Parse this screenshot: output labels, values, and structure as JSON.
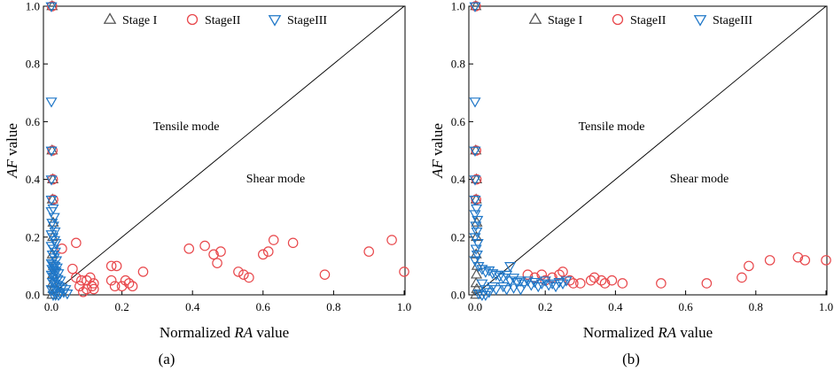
{
  "chart_data": [
    {
      "type": "scatter",
      "panel_label": "(a)",
      "title": "",
      "xlabel_pre": "Normalized ",
      "xlabel_italic": "RA",
      "xlabel_post": " value",
      "ylabel_italic": "AF",
      "ylabel_post": " value",
      "xlim": [
        0,
        1
      ],
      "ylim": [
        0,
        1
      ],
      "xticks": [
        "0.0",
        "0.2",
        "0.4",
        "0.6",
        "0.8",
        "1.0"
      ],
      "yticks": [
        "0.0",
        "0.2",
        "0.4",
        "0.6",
        "0.8",
        "1.0"
      ],
      "regions": {
        "upper": "Tensile mode",
        "lower": "Shear mode"
      },
      "reference_line": [
        [
          0,
          0
        ],
        [
          1,
          1
        ]
      ],
      "legend": [
        "Stage I",
        "StageII",
        "StageIII"
      ],
      "series": [
        {
          "name": "Stage I",
          "marker": "triangle-up",
          "color": "#555555",
          "points": [
            [
              0.002,
              1.0
            ],
            [
              0.002,
              0.5
            ],
            [
              0.004,
              0.4
            ],
            [
              0.003,
              0.33
            ],
            [
              0.005,
              0.25
            ],
            [
              0.004,
              0.2
            ],
            [
              0.003,
              0.14
            ],
            [
              0.006,
              0.1
            ],
            [
              0.004,
              0.07
            ],
            [
              0.003,
              0.04
            ],
            [
              0.005,
              0.02
            ],
            [
              0.002,
              0.0
            ]
          ]
        },
        {
          "name": "StageII",
          "marker": "circle",
          "color": "#e8474b",
          "points": [
            [
              0.002,
              1.0
            ],
            [
              0.003,
              0.5
            ],
            [
              0.004,
              0.4
            ],
            [
              0.005,
              0.33
            ],
            [
              0.03,
              0.16
            ],
            [
              0.06,
              0.09
            ],
            [
              0.07,
              0.18
            ],
            [
              0.07,
              0.06
            ],
            [
              0.08,
              0.03
            ],
            [
              0.085,
              0.05
            ],
            [
              0.09,
              0.01
            ],
            [
              0.1,
              0.02
            ],
            [
              0.1,
              0.05
            ],
            [
              0.11,
              0.06
            ],
            [
              0.115,
              0.03
            ],
            [
              0.12,
              0.04
            ],
            [
              0.12,
              0.02
            ],
            [
              0.17,
              0.1
            ],
            [
              0.17,
              0.05
            ],
            [
              0.18,
              0.03
            ],
            [
              0.185,
              0.1
            ],
            [
              0.2,
              0.03
            ],
            [
              0.21,
              0.05
            ],
            [
              0.22,
              0.04
            ],
            [
              0.23,
              0.03
            ],
            [
              0.26,
              0.08
            ],
            [
              0.39,
              0.16
            ],
            [
              0.435,
              0.17
            ],
            [
              0.46,
              0.14
            ],
            [
              0.47,
              0.11
            ],
            [
              0.48,
              0.15
            ],
            [
              0.53,
              0.08
            ],
            [
              0.545,
              0.07
            ],
            [
              0.56,
              0.06
            ],
            [
              0.6,
              0.14
            ],
            [
              0.615,
              0.15
            ],
            [
              0.63,
              0.19
            ],
            [
              0.685,
              0.18
            ],
            [
              0.775,
              0.07
            ],
            [
              0.9,
              0.15
            ],
            [
              0.965,
              0.19
            ],
            [
              1.0,
              0.08
            ]
          ]
        },
        {
          "name": "StageIII",
          "marker": "triangle-down",
          "color": "#1f77c8",
          "points": [
            [
              0.0,
              1.0
            ],
            [
              0.0,
              0.67
            ],
            [
              0.0,
              0.5
            ],
            [
              0.0,
              0.4
            ],
            [
              0.0,
              0.33
            ],
            [
              0.005,
              0.3
            ],
            [
              0.0,
              0.29
            ],
            [
              0.008,
              0.27
            ],
            [
              0.002,
              0.25
            ],
            [
              0.006,
              0.24
            ],
            [
              0.01,
              0.22
            ],
            [
              0.0,
              0.21
            ],
            [
              0.004,
              0.2
            ],
            [
              0.009,
              0.19
            ],
            [
              0.012,
              0.18
            ],
            [
              0.0,
              0.17
            ],
            [
              0.006,
              0.16
            ],
            [
              0.011,
              0.15
            ],
            [
              0.003,
              0.14
            ],
            [
              0.008,
              0.13
            ],
            [
              0.014,
              0.12
            ],
            [
              0.0,
              0.11
            ],
            [
              0.005,
              0.105
            ],
            [
              0.01,
              0.1
            ],
            [
              0.016,
              0.095
            ],
            [
              0.002,
              0.09
            ],
            [
              0.007,
              0.085
            ],
            [
              0.013,
              0.08
            ],
            [
              0.02,
              0.075
            ],
            [
              0.0,
              0.07
            ],
            [
              0.006,
              0.065
            ],
            [
              0.012,
              0.06
            ],
            [
              0.018,
              0.055
            ],
            [
              0.025,
              0.05
            ],
            [
              0.003,
              0.045
            ],
            [
              0.009,
              0.04
            ],
            [
              0.015,
              0.035
            ],
            [
              0.022,
              0.03
            ],
            [
              0.03,
              0.025
            ],
            [
              0.0,
              0.02
            ],
            [
              0.008,
              0.015
            ],
            [
              0.016,
              0.01
            ],
            [
              0.025,
              0.005
            ],
            [
              0.035,
              0.01
            ],
            [
              0.04,
              0.02
            ],
            [
              0.045,
              0.005
            ],
            [
              0.005,
              0.0
            ],
            [
              0.012,
              0.0
            ],
            [
              0.02,
              0.0
            ]
          ]
        }
      ]
    },
    {
      "type": "scatter",
      "panel_label": "(b)",
      "title": "",
      "xlabel_pre": "Normalized ",
      "xlabel_italic": "RA",
      "xlabel_post": " value",
      "ylabel_italic": "AF",
      "ylabel_post": " value",
      "xlim": [
        0,
        1
      ],
      "ylim": [
        0,
        1
      ],
      "xticks": [
        "0.0",
        "0.2",
        "0.4",
        "0.6",
        "0.8",
        "1.0"
      ],
      "yticks": [
        "0.0",
        "0.2",
        "0.4",
        "0.6",
        "0.8",
        "1.0"
      ],
      "regions": {
        "upper": "Tensile mode",
        "lower": "Shear mode"
      },
      "reference_line": [
        [
          0,
          0
        ],
        [
          1,
          1
        ]
      ],
      "legend": [
        "Stage I",
        "StageII",
        "StageIII"
      ],
      "series": [
        {
          "name": "Stage I",
          "marker": "triangle-up",
          "color": "#555555",
          "points": [
            [
              0.002,
              1.0
            ],
            [
              0.002,
              0.5
            ],
            [
              0.004,
              0.4
            ],
            [
              0.003,
              0.33
            ],
            [
              0.005,
              0.25
            ],
            [
              0.004,
              0.2
            ],
            [
              0.003,
              0.14
            ],
            [
              0.006,
              0.1
            ],
            [
              0.004,
              0.07
            ],
            [
              0.003,
              0.04
            ],
            [
              0.005,
              0.02
            ],
            [
              0.002,
              0.0
            ]
          ]
        },
        {
          "name": "StageII",
          "marker": "circle",
          "color": "#e8474b",
          "points": [
            [
              0.002,
              1.0
            ],
            [
              0.003,
              0.5
            ],
            [
              0.004,
              0.4
            ],
            [
              0.003,
              0.33
            ],
            [
              0.15,
              0.07
            ],
            [
              0.17,
              0.06
            ],
            [
              0.19,
              0.07
            ],
            [
              0.2,
              0.05
            ],
            [
              0.22,
              0.06
            ],
            [
              0.24,
              0.07
            ],
            [
              0.25,
              0.08
            ],
            [
              0.27,
              0.05
            ],
            [
              0.28,
              0.04
            ],
            [
              0.3,
              0.04
            ],
            [
              0.33,
              0.05
            ],
            [
              0.34,
              0.06
            ],
            [
              0.36,
              0.05
            ],
            [
              0.37,
              0.04
            ],
            [
              0.39,
              0.05
            ],
            [
              0.42,
              0.04
            ],
            [
              0.53,
              0.04
            ],
            [
              0.66,
              0.04
            ],
            [
              0.76,
              0.06
            ],
            [
              0.78,
              0.1
            ],
            [
              0.84,
              0.12
            ],
            [
              0.92,
              0.13
            ],
            [
              0.94,
              0.12
            ],
            [
              1.0,
              0.12
            ]
          ]
        },
        {
          "name": "StageIII",
          "marker": "triangle-down",
          "color": "#1f77c8",
          "points": [
            [
              0.0,
              1.0
            ],
            [
              0.0,
              0.67
            ],
            [
              0.0,
              0.5
            ],
            [
              0.0,
              0.4
            ],
            [
              0.0,
              0.33
            ],
            [
              0.004,
              0.3
            ],
            [
              0.0,
              0.28
            ],
            [
              0.007,
              0.26
            ],
            [
              0.002,
              0.24
            ],
            [
              0.005,
              0.22
            ],
            [
              0.0,
              0.2
            ],
            [
              0.008,
              0.18
            ],
            [
              0.003,
              0.16
            ],
            [
              0.006,
              0.14
            ],
            [
              0.0,
              0.12
            ],
            [
              0.01,
              0.1
            ],
            [
              0.02,
              0.09
            ],
            [
              0.03,
              0.08
            ],
            [
              0.04,
              0.085
            ],
            [
              0.05,
              0.075
            ],
            [
              0.06,
              0.07
            ],
            [
              0.07,
              0.065
            ],
            [
              0.08,
              0.06
            ],
            [
              0.09,
              0.07
            ],
            [
              0.1,
              0.1
            ],
            [
              0.1,
              0.05
            ],
            [
              0.11,
              0.06
            ],
            [
              0.12,
              0.045
            ],
            [
              0.13,
              0.05
            ],
            [
              0.14,
              0.04
            ],
            [
              0.15,
              0.05
            ],
            [
              0.16,
              0.035
            ],
            [
              0.17,
              0.045
            ],
            [
              0.18,
              0.03
            ],
            [
              0.19,
              0.04
            ],
            [
              0.2,
              0.05
            ],
            [
              0.21,
              0.035
            ],
            [
              0.22,
              0.04
            ],
            [
              0.23,
              0.03
            ],
            [
              0.24,
              0.045
            ],
            [
              0.25,
              0.04
            ],
            [
              0.26,
              0.05
            ],
            [
              0.05,
              0.03
            ],
            [
              0.06,
              0.02
            ],
            [
              0.08,
              0.03
            ],
            [
              0.09,
              0.02
            ],
            [
              0.11,
              0.025
            ],
            [
              0.13,
              0.02
            ],
            [
              0.02,
              0.04
            ],
            [
              0.03,
              0.02
            ],
            [
              0.04,
              0.01
            ],
            [
              0.01,
              0.005
            ],
            [
              0.02,
              0.0
            ],
            [
              0.03,
              0.0
            ]
          ]
        }
      ]
    }
  ]
}
